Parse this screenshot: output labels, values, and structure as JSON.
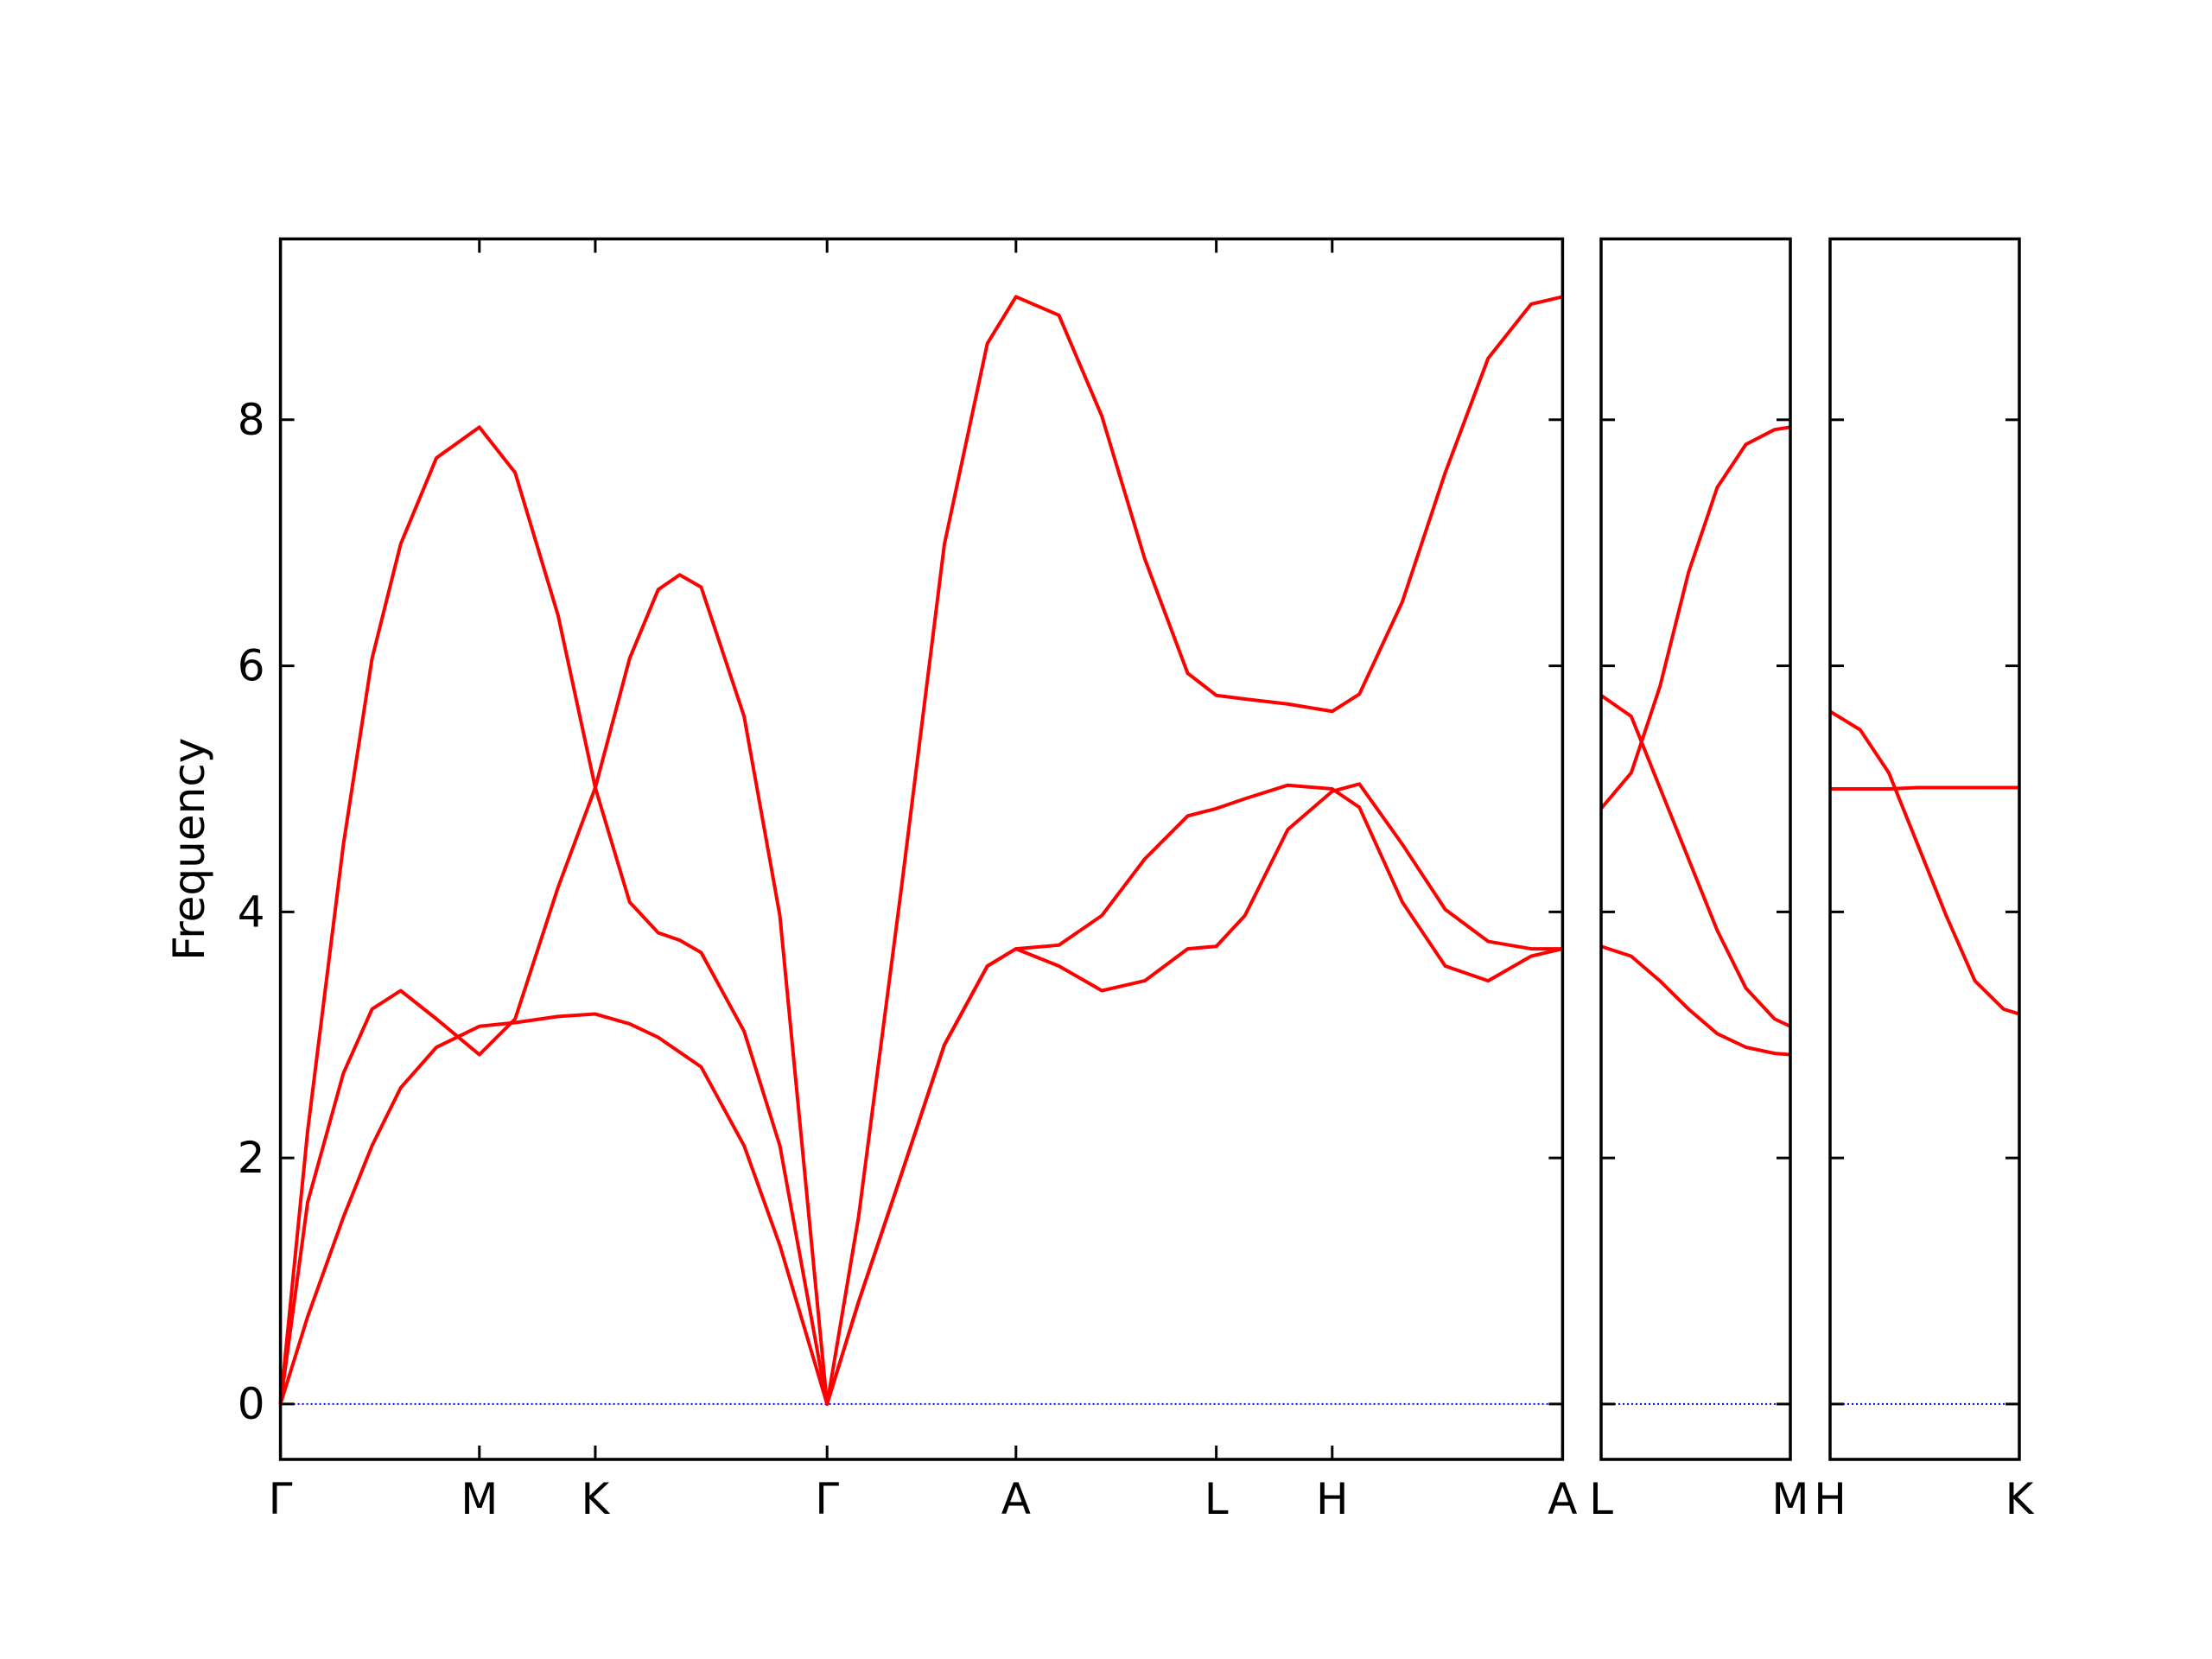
{
  "chart_data": [
    {
      "type": "line",
      "ylabel": "Frequency",
      "ytick_labels": true,
      "xlim": [
        0,
        8.96
      ],
      "ylim": [
        -0.45,
        9.47
      ],
      "yticks": [
        0,
        2,
        4,
        6,
        8
      ],
      "xticks": [
        {
          "value": 0,
          "label": "Γ"
        },
        {
          "value": 1.39,
          "label": "M"
        },
        {
          "value": 2.2,
          "label": "K"
        },
        {
          "value": 3.82,
          "label": "Γ"
        },
        {
          "value": 5.14,
          "label": "A"
        },
        {
          "value": 6.54,
          "label": "L"
        },
        {
          "value": 7.35,
          "label": "H"
        },
        {
          "value": 8.96,
          "label": "A"
        }
      ],
      "zero_line": {
        "value": 0,
        "color": "#0000ff"
      },
      "x": [
        0,
        0.19,
        0.44,
        0.64,
        0.84,
        1.09,
        1.39,
        1.64,
        1.94,
        2.2,
        2.44,
        2.64,
        2.79,
        2.94,
        3.24,
        3.49,
        3.82,
        4.04,
        4.34,
        4.64,
        4.94,
        5.14,
        5.44,
        5.74,
        6.04,
        6.34,
        6.54,
        6.74,
        7.04,
        7.35,
        7.54,
        7.84,
        8.14,
        8.44,
        8.74,
        8.96
      ],
      "series": [
        {
          "color": "#ff0000",
          "values": [
            0,
            2.22,
            4.55,
            6.06,
            6.99,
            7.69,
            7.94,
            7.57,
            6.41,
            5.01,
            4.08,
            3.83,
            3.77,
            3.67,
            3.03,
            2.1,
            0,
            1.52,
            4.2,
            6.99,
            8.62,
            9.0,
            8.85,
            8.03,
            6.87,
            5.94,
            5.76,
            5.73,
            5.69,
            5.63,
            5.77,
            6.52,
            7.57,
            8.5,
            8.94,
            9.0
          ]
        },
        {
          "color": "#ff0000",
          "values": [
            0,
            1.64,
            2.69,
            3.21,
            3.36,
            3.13,
            2.84,
            3.13,
            4.2,
            5.01,
            6.06,
            6.62,
            6.74,
            6.64,
            5.59,
            3.97,
            0,
            0.83,
            1.87,
            2.92,
            3.56,
            3.7,
            3.73,
            3.97,
            4.43,
            4.78,
            4.84,
            4.92,
            5.03,
            5.0,
            4.85,
            4.08,
            3.56,
            3.44,
            3.64,
            3.7
          ]
        },
        {
          "color": "#ff0000",
          "values": [
            0,
            0.71,
            1.52,
            2.1,
            2.57,
            2.9,
            3.07,
            3.1,
            3.15,
            3.17,
            3.09,
            2.98,
            2.86,
            2.74,
            2.1,
            1.29,
            0,
            0.83,
            1.87,
            2.92,
            3.56,
            3.7,
            3.56,
            3.36,
            3.44,
            3.7,
            3.72,
            3.97,
            4.67,
            4.98,
            5.04,
            4.55,
            4.02,
            3.76,
            3.7,
            3.7
          ]
        }
      ]
    },
    {
      "type": "line",
      "ytick_labels": false,
      "xlim": [
        0,
        1.32
      ],
      "ylim": [
        -0.45,
        9.47
      ],
      "yticks": [
        0,
        2,
        4,
        6,
        8
      ],
      "xticks": [
        {
          "value": 0,
          "label": "L"
        },
        {
          "value": 1.32,
          "label": "M"
        }
      ],
      "zero_line": {
        "value": 0,
        "color": "#0000ff"
      },
      "x": [
        0,
        0.21,
        0.41,
        0.61,
        0.81,
        1.01,
        1.21,
        1.32
      ],
      "series": [
        {
          "color": "#ff0000",
          "values": [
            5.76,
            5.59,
            5.01,
            4.43,
            3.85,
            3.38,
            3.13,
            3.07
          ]
        },
        {
          "color": "#ff0000",
          "values": [
            4.84,
            5.13,
            5.83,
            6.76,
            7.45,
            7.8,
            7.92,
            7.94
          ]
        },
        {
          "color": "#ff0000",
          "values": [
            3.72,
            3.64,
            3.44,
            3.21,
            3.01,
            2.9,
            2.85,
            2.84
          ]
        }
      ]
    },
    {
      "type": "line",
      "ytick_labels": false,
      "xlim": [
        0,
        1.32
      ],
      "ylim": [
        -0.45,
        9.47
      ],
      "yticks": [
        0,
        2,
        4,
        6,
        8
      ],
      "xticks": [
        {
          "value": 0,
          "label": "H"
        },
        {
          "value": 1.32,
          "label": "K"
        }
      ],
      "zero_line": {
        "value": 0,
        "color": "#0000ff"
      },
      "x": [
        0,
        0.21,
        0.41,
        0.61,
        0.81,
        1.01,
        1.21,
        1.32
      ],
      "series": [
        {
          "color": "#ff0000",
          "values": [
            5.63,
            5.48,
            5.13,
            4.55,
            3.97,
            3.44,
            3.21,
            3.17
          ]
        },
        {
          "color": "#ff0000",
          "values": [
            5.0,
            5.0,
            5.0,
            5.01,
            5.01,
            5.01,
            5.01,
            5.01
          ]
        }
      ]
    }
  ]
}
